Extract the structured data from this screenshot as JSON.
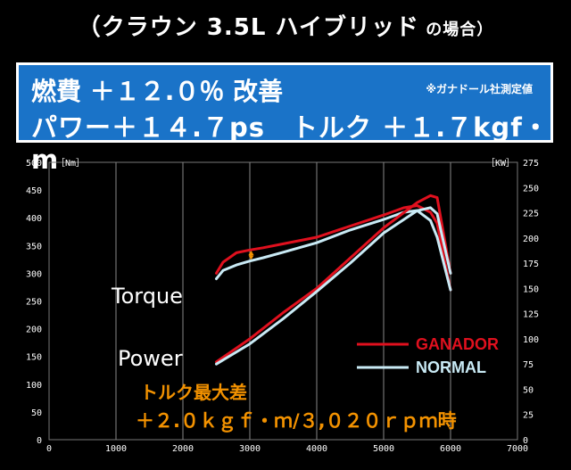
{
  "header": {
    "title_main": "（クラウン 3.5L ハイブリッド",
    "title_small": " の場合）"
  },
  "banner": {
    "line1": "燃費 ＋１２.０％ 改善",
    "line2": "パワー＋１４.７ps　トルク ＋１.７kgf・m",
    "note": "※ガナドール社測定値"
  },
  "chart_data": {
    "type": "line",
    "x_ticks": [
      "0",
      "1000",
      "2000",
      "3000",
      "4000",
      "5000",
      "6000",
      "7000"
    ],
    "y_left_ticks": [
      "0",
      "50",
      "100",
      "150",
      "200",
      "250",
      "300",
      "350",
      "400",
      "450",
      "500"
    ],
    "y_right_ticks": [
      "0",
      "25",
      "50",
      "75",
      "100",
      "125",
      "150",
      "175",
      "200",
      "225",
      "250",
      "275"
    ],
    "y_left_unit": "［Nm］",
    "y_right_unit": "［KW］",
    "xlim": [
      0,
      7000
    ],
    "ylim_left": [
      0,
      500
    ],
    "ylim_right": [
      0,
      275
    ],
    "labels": {
      "torque": "Torque",
      "power": "Power"
    },
    "legend": [
      {
        "name": "GANADOR",
        "color": "#e0101e"
      },
      {
        "name": "NORMAL",
        "color": "#c9eaf5"
      }
    ],
    "annotation": {
      "line1": "トルク最大差",
      "line2": "＋２.０ｋｇｆ・ｍ/３,０２０ｒｐｍ時"
    },
    "series": [
      {
        "name": "GANADOR",
        "kind": "torque",
        "color": "#e0101e",
        "x": [
          2500,
          2600,
          2800,
          3000,
          3200,
          3500,
          4000,
          4500,
          5000,
          5300,
          5500,
          5700,
          5800,
          6000
        ],
        "y": [
          300,
          320,
          337,
          342,
          346,
          353,
          365,
          385,
          405,
          418,
          422,
          410,
          390,
          270
        ]
      },
      {
        "name": "NORMAL",
        "kind": "torque",
        "color": "#c9eaf5",
        "x": [
          2500,
          2600,
          2800,
          3000,
          3200,
          3500,
          4000,
          4500,
          5000,
          5300,
          5500,
          5700,
          5800,
          6000
        ],
        "y": [
          290,
          305,
          315,
          322,
          328,
          338,
          355,
          378,
          397,
          410,
          413,
          395,
          365,
          270
        ]
      },
      {
        "name": "GANADOR",
        "kind": "power",
        "color": "#e0101e",
        "x": [
          2500,
          3000,
          3500,
          4000,
          4500,
          5000,
          5500,
          5700,
          5800,
          6000
        ],
        "y": [
          77,
          100,
          126,
          150,
          180,
          210,
          235,
          242,
          240,
          165
        ]
      },
      {
        "name": "NORMAL",
        "kind": "power",
        "color": "#c9eaf5",
        "x": [
          2500,
          3000,
          3500,
          4000,
          4500,
          5000,
          5500,
          5700,
          5800,
          6000
        ],
        "y": [
          75,
          95,
          120,
          147,
          175,
          205,
          227,
          230,
          224,
          165
        ]
      }
    ]
  }
}
